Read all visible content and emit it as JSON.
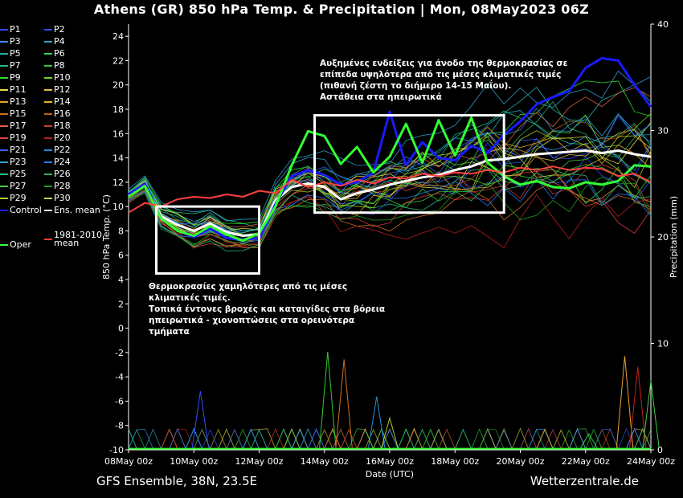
{
  "title": "Athens  (GR)  850 hPa Temp. & Precipitation | Mon, 08May2023 06Z",
  "footer": {
    "model": "GFS Ensemble, 38N, 23.5E",
    "site": "Wetterzentrale.de"
  },
  "legend": [
    {
      "label": "P1",
      "color": "#2f4fff"
    },
    {
      "label": "P2",
      "color": "#2f4fff"
    },
    {
      "label": "P3",
      "color": "#3a8cff"
    },
    {
      "label": "P4",
      "color": "#2aa6c8"
    },
    {
      "label": "P5",
      "color": "#1fb0b0"
    },
    {
      "label": "P6",
      "color": "#2fd04a"
    },
    {
      "label": "P7",
      "color": "#22c07a"
    },
    {
      "label": "P8",
      "color": "#33cc33"
    },
    {
      "label": "P9",
      "color": "#2ee02e"
    },
    {
      "label": "P10",
      "color": "#66dd22"
    },
    {
      "label": "P11",
      "color": "#e0e040"
    },
    {
      "label": "P12",
      "color": "#d9c040"
    },
    {
      "label": "P13",
      "color": "#e8a030"
    },
    {
      "label": "P14",
      "color": "#f0b020"
    },
    {
      "label": "P15",
      "color": "#d07020"
    },
    {
      "label": "P16",
      "color": "#c06010"
    },
    {
      "label": "P17",
      "color": "#e06040"
    },
    {
      "label": "P18",
      "color": "#d04030"
    },
    {
      "label": "P19",
      "color": "#e04040"
    },
    {
      "label": "P20",
      "color": "#c02020"
    },
    {
      "label": "P21",
      "color": "#3060ff"
    },
    {
      "label": "P22",
      "color": "#2090e0"
    },
    {
      "label": "P23",
      "color": "#30a0d0"
    },
    {
      "label": "P24",
      "color": "#2080ff"
    },
    {
      "label": "P25",
      "color": "#20c080"
    },
    {
      "label": "P26",
      "color": "#30b060"
    },
    {
      "label": "P27",
      "color": "#40d040"
    },
    {
      "label": "P28",
      "color": "#20a020"
    },
    {
      "label": "P29",
      "color": "#b0d020"
    },
    {
      "label": "P30",
      "color": "#d0d030"
    },
    {
      "label": "Control",
      "color": "#1a1aff"
    },
    {
      "label": "Ens. mean",
      "color": "#ffffff"
    },
    {
      "label": "1981-2010\nmean",
      "color": "#ff4040"
    },
    {
      "label": "Oper",
      "color": "#33ff33"
    }
  ],
  "annotations": {
    "warm": [
      "Αυξημένες ενδείξεις για άνοδο της θερμοκρασίας σε",
      "επίπεδα υψηλότερα από τις μέσες κλιματικές τιμές",
      "(πιθανή ζέστη το διήμερο 14-15 Μαΐου).",
      "Αστάθεια στα ηπειρωτικά"
    ],
    "cold": [
      "Θερμοκρασίες χαμηλότερες από τις μέσες",
      "κλιματικές τιμές.",
      "Τοπικά έντονες βροχές και καταιγίδες στα βόρεια",
      "ηπειρωτικά - χιονοπτώσεις στα ορεινότερα",
      "τμήματα"
    ]
  },
  "chart_data": {
    "type": "line",
    "xlabel": "Date (UTC)",
    "ylabel": "850 hPa Temp. (°C)",
    "y2label": "Precipitation (mm)",
    "x_ticks": [
      "08May 00z",
      "10May 00z",
      "12May 00z",
      "14May 00z",
      "16May 00z",
      "18May 00z",
      "20May 00z",
      "22May 00z",
      "24May 00z"
    ],
    "xlim_days": [
      0,
      16
    ],
    "ylim": [
      -10,
      25
    ],
    "y_ticks": [
      -10,
      -8,
      -6,
      -4,
      -2,
      0,
      2,
      4,
      6,
      8,
      10,
      12,
      14,
      16,
      18,
      20,
      22,
      24
    ],
    "y2lim": [
      0,
      40
    ],
    "y2_ticks": [
      0,
      10,
      20,
      30,
      40
    ],
    "grid": false,
    "boxes_days_temp": [
      {
        "x": [
          0.85,
          4.0
        ],
        "y": [
          4.5,
          10
        ]
      },
      {
        "x": [
          5.7,
          11.5
        ],
        "y": [
          9.5,
          17.5
        ]
      }
    ],
    "series": [
      {
        "name": "Ens. mean",
        "color": "#ffffff",
        "width": 3,
        "points": [
          [
            0.0,
            10.9
          ],
          [
            0.5,
            11.8
          ],
          [
            1.0,
            9.2
          ],
          [
            1.5,
            8.5
          ],
          [
            2.0,
            8.0
          ],
          [
            2.5,
            8.6
          ],
          [
            3.0,
            7.9
          ],
          [
            3.5,
            7.6
          ],
          [
            4.0,
            7.7
          ],
          [
            4.5,
            10.5
          ],
          [
            5.0,
            11.6
          ],
          [
            5.5,
            11.9
          ],
          [
            6.0,
            11.6
          ],
          [
            6.5,
            10.6
          ],
          [
            7.0,
            11.1
          ],
          [
            7.5,
            11.4
          ],
          [
            8.0,
            11.8
          ],
          [
            8.5,
            12.1
          ],
          [
            9.0,
            12.4
          ],
          [
            9.5,
            12.6
          ],
          [
            10.0,
            13.0
          ],
          [
            10.5,
            13.3
          ],
          [
            11.0,
            13.8
          ],
          [
            11.5,
            13.9
          ],
          [
            12.0,
            14.1
          ],
          [
            12.5,
            14.3
          ],
          [
            13.0,
            14.4
          ],
          [
            13.5,
            14.5
          ],
          [
            14.0,
            14.6
          ],
          [
            14.5,
            14.4
          ],
          [
            15.0,
            14.6
          ],
          [
            15.5,
            14.3
          ],
          [
            16.0,
            14.1
          ]
        ]
      },
      {
        "name": "Control",
        "color": "#1a1aff",
        "width": 3,
        "points": [
          [
            0.0,
            11.0
          ],
          [
            0.5,
            11.9
          ],
          [
            1.0,
            9.0
          ],
          [
            1.5,
            8.0
          ],
          [
            2.0,
            7.5
          ],
          [
            2.5,
            8.2
          ],
          [
            3.0,
            7.4
          ],
          [
            3.5,
            7.3
          ],
          [
            4.0,
            7.4
          ],
          [
            4.5,
            10.2
          ],
          [
            5.0,
            12.5
          ],
          [
            5.5,
            13.0
          ],
          [
            6.0,
            12.6
          ],
          [
            6.5,
            11.8
          ],
          [
            7.0,
            12.0
          ],
          [
            7.5,
            12.8
          ],
          [
            8.0,
            17.8
          ],
          [
            8.5,
            13.4
          ],
          [
            9.0,
            15.3
          ],
          [
            9.5,
            14.0
          ],
          [
            10.0,
            13.8
          ],
          [
            10.5,
            15.0
          ],
          [
            11.0,
            14.4
          ],
          [
            11.5,
            15.9
          ],
          [
            12.0,
            17.0
          ],
          [
            12.5,
            18.4
          ],
          [
            13.0,
            19.0
          ],
          [
            13.5,
            19.5
          ],
          [
            14.0,
            21.4
          ],
          [
            14.5,
            22.2
          ],
          [
            15.0,
            22.0
          ],
          [
            15.5,
            20.0
          ],
          [
            16.0,
            18.2
          ]
        ]
      },
      {
        "name": "Oper",
        "color": "#33ff33",
        "width": 3,
        "points": [
          [
            0.0,
            10.8
          ],
          [
            0.5,
            11.7
          ],
          [
            1.0,
            9.0
          ],
          [
            1.5,
            8.0
          ],
          [
            2.0,
            7.6
          ],
          [
            2.5,
            8.4
          ],
          [
            3.0,
            7.7
          ],
          [
            3.5,
            7.2
          ],
          [
            4.0,
            7.8
          ],
          [
            4.5,
            10.0
          ],
          [
            5.0,
            13.4
          ],
          [
            5.5,
            16.2
          ],
          [
            6.0,
            15.8
          ],
          [
            6.5,
            13.5
          ],
          [
            7.0,
            14.9
          ],
          [
            7.5,
            12.8
          ],
          [
            8.0,
            14.1
          ],
          [
            8.5,
            16.8
          ],
          [
            9.0,
            13.6
          ],
          [
            9.5,
            17.1
          ],
          [
            10.0,
            14.2
          ],
          [
            10.5,
            17.3
          ],
          [
            11.0,
            13.6
          ],
          [
            11.5,
            12.5
          ],
          [
            12.0,
            11.8
          ],
          [
            12.5,
            12.1
          ],
          [
            13.0,
            11.6
          ],
          [
            13.5,
            11.5
          ],
          [
            14.0,
            12.0
          ],
          [
            14.5,
            11.8
          ],
          [
            15.0,
            12.1
          ],
          [
            15.5,
            13.4
          ],
          [
            16.0,
            13.3
          ]
        ]
      },
      {
        "name": "1981-2010 mean",
        "color": "#ff4040",
        "width": 2,
        "points": [
          [
            0.0,
            9.5
          ],
          [
            0.5,
            10.3
          ],
          [
            1.0,
            10.0
          ],
          [
            1.5,
            10.6
          ],
          [
            2.0,
            10.8
          ],
          [
            2.5,
            10.7
          ],
          [
            3.0,
            11.0
          ],
          [
            3.5,
            10.8
          ],
          [
            4.0,
            11.3
          ],
          [
            4.5,
            11.1
          ],
          [
            5.0,
            12.2
          ],
          [
            5.5,
            11.6
          ],
          [
            6.0,
            12.0
          ],
          [
            6.5,
            11.7
          ],
          [
            7.0,
            12.2
          ],
          [
            7.5,
            11.9
          ],
          [
            8.0,
            12.4
          ],
          [
            8.5,
            12.3
          ],
          [
            9.0,
            12.7
          ],
          [
            9.5,
            12.5
          ],
          [
            10.0,
            12.8
          ],
          [
            10.5,
            12.7
          ],
          [
            11.0,
            13.0
          ],
          [
            11.5,
            12.8
          ],
          [
            12.0,
            13.2
          ],
          [
            12.5,
            13.0
          ],
          [
            13.0,
            13.3
          ],
          [
            13.5,
            13.0
          ],
          [
            14.0,
            13.2
          ],
          [
            14.5,
            13.1
          ],
          [
            15.0,
            12.5
          ],
          [
            15.5,
            12.7
          ],
          [
            16.0,
            12.0
          ]
        ]
      }
    ],
    "members_temp_shape": {
      "note": "ensemble members P1-P30 drawn around ens. mean with spread",
      "spread": [
        [
          0,
          0.5
        ],
        [
          2,
          1.5
        ],
        [
          4,
          1.2
        ],
        [
          6,
          2.5
        ],
        [
          8,
          3
        ],
        [
          10,
          4
        ],
        [
          12,
          5
        ],
        [
          14,
          5.5
        ],
        [
          16,
          6
        ]
      ]
    },
    "precip_spikes_mm": [
      {
        "day": 2.2,
        "mm": 5.5
      },
      {
        "day": 6.1,
        "mm": 9.2
      },
      {
        "day": 6.6,
        "mm": 8.5
      },
      {
        "day": 7.6,
        "mm": 5.0
      },
      {
        "day": 8.0,
        "mm": 3.0
      },
      {
        "day": 14.1,
        "mm": 1.5
      },
      {
        "day": 15.2,
        "mm": 8.8
      },
      {
        "day": 15.6,
        "mm": 7.8
      },
      {
        "day": 16.0,
        "mm": 6.5
      }
    ]
  }
}
